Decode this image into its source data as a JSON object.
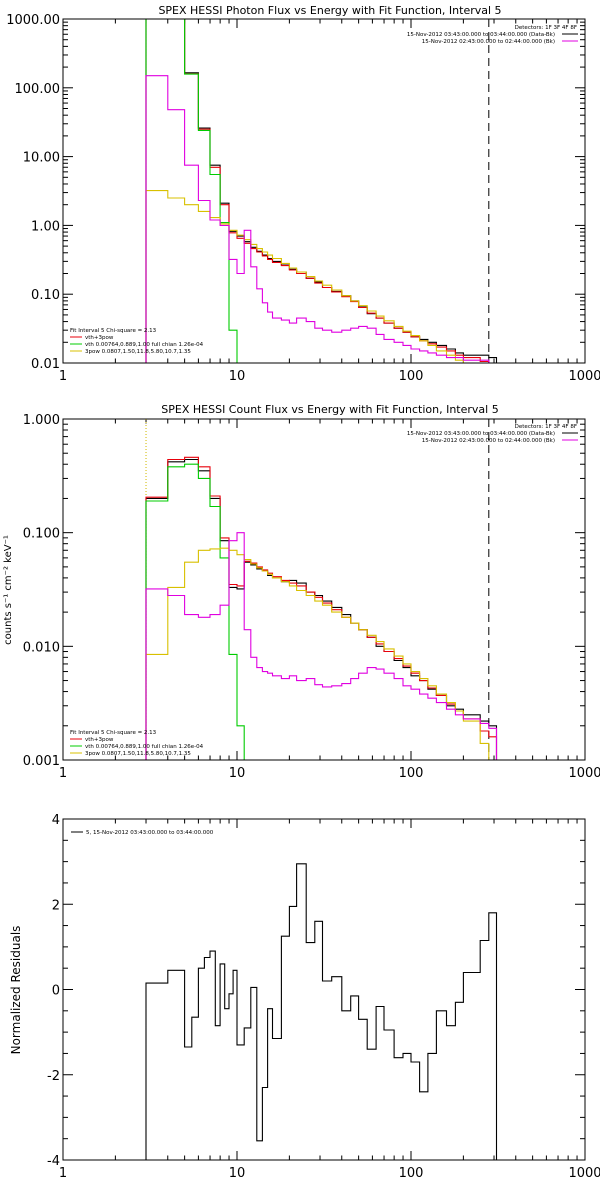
{
  "colors": {
    "background": "#ffffff",
    "axes": "#000000",
    "black_series": "#000000",
    "red_series": "#e8000b",
    "green_series": "#00cc00",
    "yellow_series": "#d8c000",
    "magenta_series": "#e000e0"
  },
  "chart_data": [
    {
      "type": "line",
      "title": "SPEX HESSI Photon Flux vs Energy with Fit Function, Interval 5",
      "xscale": "log",
      "yscale": "log",
      "xlim": [
        1,
        1000
      ],
      "ylim": [
        0.01,
        1000
      ],
      "xticks": [
        1,
        10,
        100,
        1000
      ],
      "xtick_labels": [
        "1",
        "10",
        "100",
        "1000"
      ],
      "yticks": [
        0.01,
        0.1,
        1,
        10,
        100,
        1000
      ],
      "ytick_labels": [
        "0.01",
        "0.10",
        "1.00",
        "10.00",
        "100.00",
        "1000.00"
      ],
      "header_lines": [
        "Detectors: 1F 3F 4F 8F",
        "15-Nov-2012 03:43:00.000 to 03:44:00.000 (Data-Bk)",
        "15-Nov-2012 02:43:00.000 to 02:44:00.000 (Bk)"
      ],
      "header_line_colors": [
        "black_series",
        "black_series",
        "magenta_series"
      ],
      "legend_lines": [
        "Fit Interval 5   Chi-square = 2.13",
        "vth+3pow",
        "vth 0.00764,0.889,1.00   full chian 1.26e-04",
        "3pow 0.0807,1.50,11.8,5.80,10.7,1.35"
      ],
      "legend_line_colors": [
        "black_series",
        "red_series",
        "green_series",
        "yellow_series"
      ],
      "vlines": [
        {
          "x": 3,
          "style": "dotted",
          "color": "yellow_series"
        },
        {
          "x": 280,
          "style": "dashed",
          "color": "axes"
        }
      ],
      "series": [
        {
          "color": "black_series",
          "x": [
            3,
            4,
            5,
            6,
            7,
            8,
            9,
            10,
            11,
            12,
            13,
            14,
            15,
            16,
            18,
            20,
            22,
            25,
            28,
            31,
            35,
            40,
            45,
            50,
            56,
            63,
            70,
            80,
            90,
            100,
            112,
            125,
            140,
            160,
            180,
            200,
            250,
            280
          ],
          "values": [
            1000,
            1000,
            165,
            26,
            7.5,
            2.1,
            0.82,
            0.7,
            0.58,
            0.48,
            0.42,
            0.37,
            0.33,
            0.3,
            0.265,
            0.23,
            0.21,
            0.17,
            0.15,
            0.125,
            0.11,
            0.095,
            0.08,
            0.065,
            0.052,
            0.045,
            0.038,
            0.032,
            0.028,
            0.024,
            0.022,
            0.02,
            0.018,
            0.016,
            0.014,
            0.013,
            0.013,
            0.012
          ]
        },
        {
          "color": "red_series",
          "x": [
            3,
            4,
            5,
            6,
            7,
            8,
            9,
            10,
            11,
            12,
            13,
            14,
            15,
            16,
            18,
            20,
            22,
            25,
            28,
            31,
            35,
            40,
            45,
            50,
            56,
            63,
            70,
            80,
            90,
            100,
            112,
            125,
            140,
            160,
            180,
            200,
            250,
            280
          ],
          "values": [
            1000,
            1000,
            160,
            25,
            7,
            2,
            0.78,
            0.65,
            0.55,
            0.46,
            0.41,
            0.36,
            0.32,
            0.29,
            0.26,
            0.225,
            0.2,
            0.17,
            0.145,
            0.125,
            0.108,
            0.092,
            0.078,
            0.064,
            0.053,
            0.045,
            0.038,
            0.032,
            0.028,
            0.024,
            0.021,
            0.019,
            0.017,
            0.015,
            0.013,
            0.012,
            0.0105,
            0.0098
          ]
        },
        {
          "color": "green_series",
          "x": [
            3,
            4,
            5,
            6,
            7,
            8,
            9,
            10
          ],
          "values": [
            1000,
            1000,
            158,
            24,
            5.5,
            1.1,
            0.03,
            0.01
          ]
        },
        {
          "color": "yellow_series",
          "x": [
            3,
            4,
            5,
            6,
            7,
            8,
            9,
            10,
            11,
            12,
            13,
            14,
            15,
            16,
            18,
            20,
            22,
            25,
            28,
            31,
            35,
            40,
            45,
            50,
            56,
            63,
            70,
            80,
            90,
            100,
            112,
            125,
            140,
            160,
            180,
            200,
            250
          ],
          "values": [
            3.2,
            2.5,
            2.0,
            1.6,
            1.3,
            1.05,
            0.85,
            0.72,
            0.62,
            0.53,
            0.46,
            0.41,
            0.37,
            0.33,
            0.28,
            0.24,
            0.21,
            0.18,
            0.155,
            0.135,
            0.115,
            0.095,
            0.08,
            0.068,
            0.057,
            0.048,
            0.041,
            0.034,
            0.029,
            0.025,
            0.021,
            0.018,
            0.015,
            0.013,
            0.011,
            0.0095,
            0.008
          ]
        },
        {
          "color": "magenta_series",
          "x": [
            3,
            4,
            5,
            6,
            7,
            8,
            9,
            10,
            11,
            12,
            13,
            14,
            15,
            16,
            18,
            20,
            22,
            25,
            28,
            31,
            35,
            40,
            45,
            50,
            56,
            63,
            70,
            80,
            90,
            100,
            112,
            125,
            140,
            160,
            180,
            200,
            250,
            280
          ],
          "values": [
            150,
            48,
            7.5,
            2.3,
            1.2,
            1.0,
            0.32,
            0.2,
            0.85,
            0.25,
            0.12,
            0.075,
            0.055,
            0.045,
            0.042,
            0.038,
            0.045,
            0.04,
            0.032,
            0.03,
            0.028,
            0.03,
            0.032,
            0.034,
            0.032,
            0.026,
            0.022,
            0.02,
            0.018,
            0.016,
            0.015,
            0.014,
            0.013,
            0.012,
            0.012,
            0.011,
            0.011,
            0.01
          ]
        }
      ]
    },
    {
      "type": "line",
      "title": "SPEX HESSI Count Flux vs Energy with Fit Function, Interval 5",
      "ylabel": "counts s⁻¹ cm⁻² keV⁻¹",
      "xscale": "log",
      "yscale": "log",
      "xlim": [
        1,
        1000
      ],
      "ylim": [
        0.001,
        1
      ],
      "xticks": [
        1,
        10,
        100,
        1000
      ],
      "xtick_labels": [
        "1",
        "10",
        "100",
        "1000"
      ],
      "yticks": [
        0.001,
        0.01,
        0.1,
        1
      ],
      "ytick_labels": [
        "0.001",
        "0.010",
        "0.100",
        "1.000"
      ],
      "header_lines": [
        "Detectors: 1F 3F 4F 8F",
        "15-Nov-2012 03:43:00.000 to 03:44:00.000 (Data-Bk)",
        "15-Nov-2012 02:43:00.000 to 02:44:00.000 (Bk)"
      ],
      "header_line_colors": [
        "black_series",
        "black_series",
        "magenta_series"
      ],
      "legend_lines": [
        "Fit Interval 5   Chi-square = 2.13",
        "vth+3pow",
        "vth 0.00764,0.889,1.00   full chian 1.26e-04",
        "3pow 0.0807,1.50,11.8,5.80,10.7,1.35"
      ],
      "legend_line_colors": [
        "black_series",
        "red_series",
        "green_series",
        "yellow_series"
      ],
      "vlines": [
        {
          "x": 3,
          "style": "dotted",
          "color": "axes"
        },
        {
          "x": 3,
          "style": "dotted",
          "color": "yellow_series"
        },
        {
          "x": 280,
          "style": "dashed",
          "color": "axes"
        }
      ],
      "series": [
        {
          "color": "black_series",
          "x": [
            3,
            4,
            5,
            6,
            7,
            8,
            9,
            10,
            11,
            12,
            13,
            14,
            15,
            16,
            18,
            20,
            22,
            25,
            28,
            31,
            35,
            40,
            45,
            50,
            56,
            63,
            70,
            80,
            90,
            100,
            112,
            125,
            140,
            160,
            180,
            200,
            250,
            280
          ],
          "values": [
            0.2,
            0.42,
            0.44,
            0.35,
            0.2,
            0.085,
            0.033,
            0.032,
            0.055,
            0.052,
            0.048,
            0.046,
            0.042,
            0.04,
            0.037,
            0.038,
            0.036,
            0.03,
            0.028,
            0.025,
            0.022,
            0.019,
            0.016,
            0.014,
            0.012,
            0.01,
            0.009,
            0.0075,
            0.0065,
            0.0055,
            0.005,
            0.0042,
            0.0037,
            0.003,
            0.0028,
            0.0025,
            0.0022,
            0.002
          ]
        },
        {
          "color": "red_series",
          "x": [
            3,
            4,
            5,
            6,
            7,
            8,
            9,
            10,
            11,
            12,
            13,
            14,
            15,
            16,
            18,
            20,
            22,
            25,
            28,
            31,
            35,
            40,
            45,
            50,
            56,
            63,
            70,
            80,
            90,
            100,
            112,
            125,
            140,
            160,
            180,
            200,
            250,
            280
          ],
          "values": [
            0.205,
            0.44,
            0.46,
            0.38,
            0.21,
            0.09,
            0.035,
            0.034,
            0.056,
            0.054,
            0.05,
            0.047,
            0.044,
            0.041,
            0.038,
            0.036,
            0.034,
            0.03,
            0.027,
            0.024,
            0.021,
            0.018,
            0.016,
            0.014,
            0.012,
            0.0105,
            0.009,
            0.0078,
            0.0067,
            0.0058,
            0.005,
            0.0043,
            0.0037,
            0.0031,
            0.0027,
            0.0023,
            0.0018,
            0.0016
          ]
        },
        {
          "color": "green_series",
          "x": [
            3,
            4,
            5,
            6,
            7,
            8,
            9,
            10,
            11
          ],
          "values": [
            0.19,
            0.38,
            0.4,
            0.3,
            0.17,
            0.06,
            0.0085,
            0.002,
            0.0008
          ]
        },
        {
          "color": "yellow_series",
          "x": [
            3,
            4,
            5,
            6,
            7,
            8,
            9,
            10,
            11,
            12,
            13,
            14,
            15,
            16,
            18,
            20,
            22,
            25,
            28,
            31,
            35,
            40,
            45,
            50,
            56,
            63,
            70,
            80,
            90,
            100,
            112,
            125,
            140,
            160,
            180,
            200,
            250,
            280
          ],
          "values": [
            0.0085,
            0.033,
            0.055,
            0.07,
            0.072,
            0.073,
            0.07,
            0.064,
            0.058,
            0.053,
            0.049,
            0.046,
            0.043,
            0.04,
            0.037,
            0.034,
            0.031,
            0.028,
            0.025,
            0.023,
            0.02,
            0.018,
            0.016,
            0.014,
            0.0125,
            0.011,
            0.0095,
            0.0082,
            0.007,
            0.006,
            0.0052,
            0.0045,
            0.0038,
            0.0032,
            0.0027,
            0.0022,
            0.0014,
            0.0009
          ]
        },
        {
          "color": "magenta_series",
          "x": [
            3,
            4,
            5,
            6,
            7,
            8,
            9,
            10,
            11,
            12,
            13,
            14,
            15,
            16,
            18,
            20,
            22,
            25,
            28,
            31,
            35,
            40,
            45,
            50,
            56,
            63,
            70,
            80,
            90,
            100,
            112,
            125,
            140,
            160,
            180,
            200,
            250,
            280
          ],
          "values": [
            0.032,
            0.028,
            0.019,
            0.018,
            0.019,
            0.023,
            0.085,
            0.1,
            0.014,
            0.008,
            0.0065,
            0.006,
            0.0058,
            0.0055,
            0.0052,
            0.0055,
            0.005,
            0.0052,
            0.0046,
            0.0044,
            0.0045,
            0.0047,
            0.0052,
            0.0058,
            0.0065,
            0.0063,
            0.0058,
            0.0052,
            0.0045,
            0.0042,
            0.0038,
            0.0035,
            0.0032,
            0.0028,
            0.0025,
            0.0023,
            0.0021,
            0.0019
          ]
        }
      ]
    },
    {
      "type": "line",
      "ylabel": "Normalized Residuals",
      "xscale": "log",
      "yscale": "linear",
      "xlim": [
        1,
        1000
      ],
      "ylim": [
        -4,
        4
      ],
      "xticks": [
        1,
        10,
        100,
        1000
      ],
      "xtick_labels": [
        "1",
        "10",
        "100",
        "1000"
      ],
      "yticks": [
        -4,
        -2,
        0,
        2,
        4
      ],
      "ytick_labels": [
        "-4",
        "-2",
        "0",
        "2",
        "4"
      ],
      "legend_lines": [
        "5, 15-Nov-2012 03:43:00.000 to 03:44:00.000"
      ],
      "legend_line_colors": [
        "black_series"
      ],
      "series": [
        {
          "color": "black_series",
          "x": [
            3,
            3.5,
            4,
            5,
            5.5,
            6,
            6.5,
            7,
            7.5,
            8,
            8.5,
            9,
            9.5,
            10,
            11,
            12,
            13,
            14,
            15,
            16,
            18,
            20,
            22,
            25,
            28,
            31,
            35,
            40,
            45,
            50,
            56,
            63,
            70,
            80,
            90,
            100,
            112,
            125,
            140,
            160,
            180,
            200,
            250,
            280
          ],
          "values": [
            0.15,
            0.15,
            0.45,
            -1.35,
            -0.65,
            0.5,
            0.75,
            0.9,
            -0.85,
            0.6,
            -0.45,
            -0.1,
            0.45,
            -1.3,
            -0.9,
            0.05,
            -3.55,
            -2.3,
            -0.45,
            -1.15,
            1.25,
            1.95,
            2.95,
            1.1,
            1.6,
            0.2,
            0.3,
            -0.5,
            -0.15,
            -0.7,
            -1.4,
            -0.4,
            -0.95,
            -1.6,
            -1.5,
            -1.7,
            -2.4,
            -1.5,
            -0.5,
            -0.85,
            -0.3,
            0.4,
            1.15,
            1.8
          ]
        }
      ]
    }
  ]
}
